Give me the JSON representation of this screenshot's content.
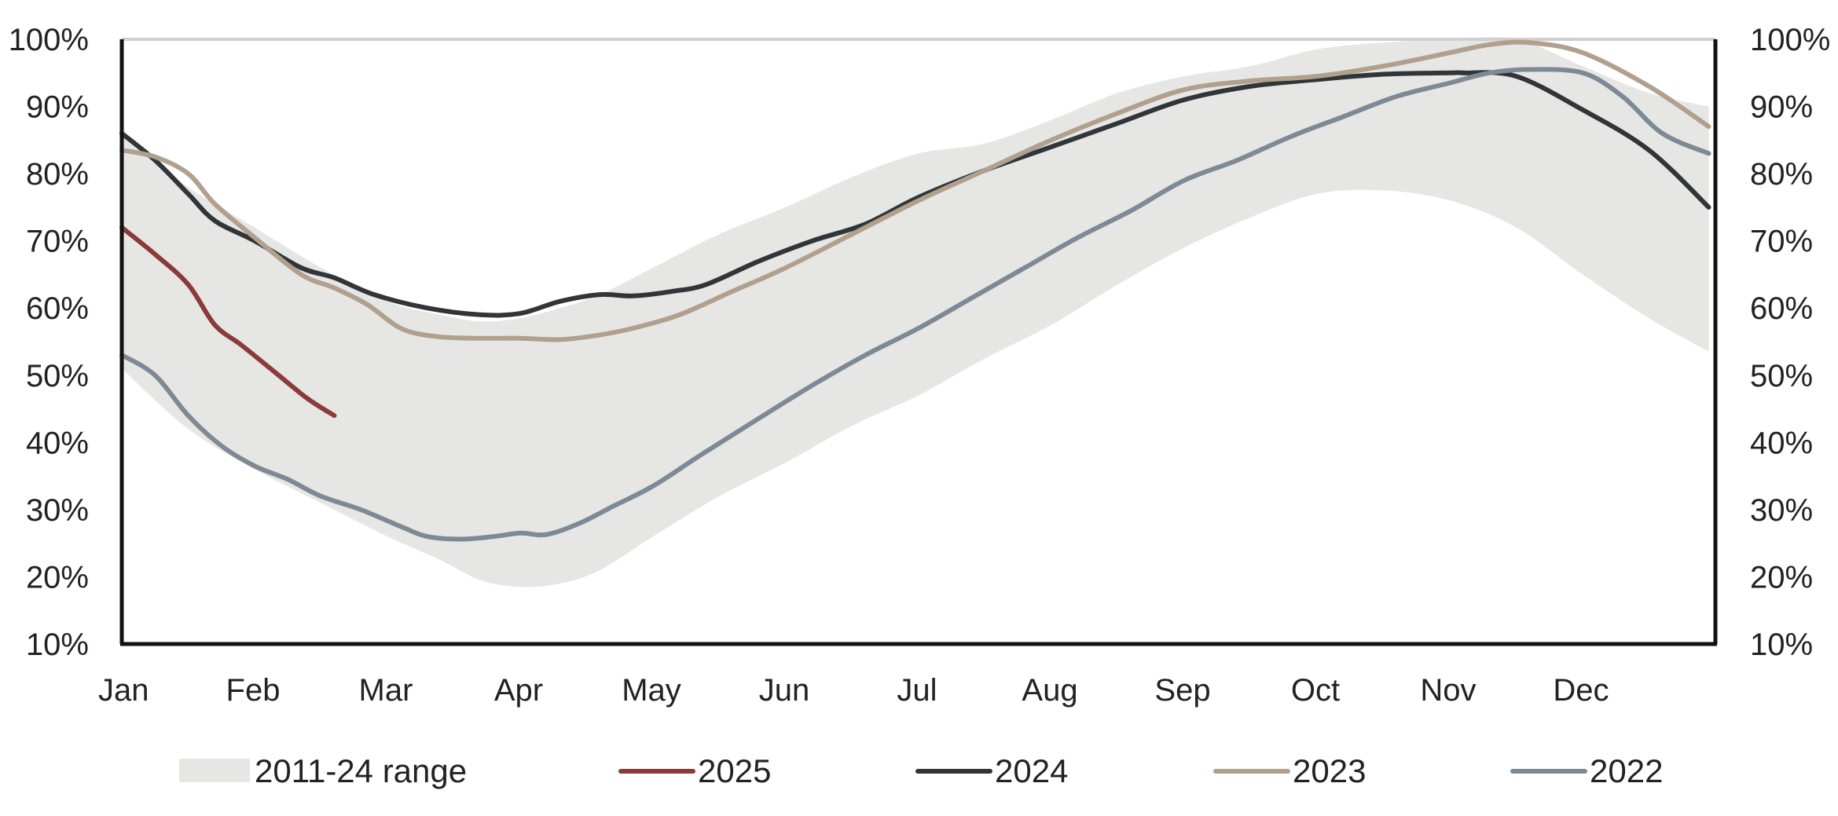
{
  "chart_data": {
    "type": "line",
    "title": "",
    "xlabel": "",
    "ylabel": "",
    "x_ticks": [
      "Jan",
      "Feb",
      "Mar",
      "Apr",
      "May",
      "Jun",
      "Jul",
      "Aug",
      "Sep",
      "Oct",
      "Nov",
      "Dec"
    ],
    "ylim": [
      10,
      100
    ],
    "y_ticks": [
      "10%",
      "20%",
      "30%",
      "40%",
      "50%",
      "60%",
      "70%",
      "80%",
      "90%",
      "100%"
    ],
    "y_tick_values": [
      10,
      20,
      30,
      40,
      50,
      60,
      70,
      80,
      90,
      100
    ],
    "gridline_at": 100,
    "x_unit": "month (Jan = 0, Dec end = 12)",
    "range": {
      "name": "2011-24 range",
      "color": "#e6e6e5",
      "x": [
        0,
        0.5,
        1,
        1.5,
        2,
        2.4,
        2.7,
        3,
        3.3,
        3.6,
        4,
        4.5,
        5,
        5.5,
        6,
        6.5,
        7,
        7.5,
        8,
        8.5,
        9,
        9.5,
        10,
        10.5,
        11,
        11.5,
        11.95
      ],
      "upper": [
        86,
        78,
        72,
        66,
        61,
        59,
        58,
        58.5,
        60,
        62,
        66,
        71,
        75,
        79.5,
        83,
        84.5,
        88,
        92,
        94.5,
        96,
        98.5,
        99.5,
        100,
        100,
        96,
        92,
        90
      ],
      "lower": [
        51,
        42,
        36,
        31,
        26,
        22.5,
        19.5,
        18.5,
        19,
        21,
        26,
        32,
        37,
        42.5,
        47,
        52.5,
        57.5,
        63.5,
        69,
        73.5,
        77,
        77.5,
        76,
        72,
        65,
        58.5,
        53.5
      ]
    },
    "series": [
      {
        "name": "2025",
        "color": "#8b3a3a",
        "x": [
          0,
          0.25,
          0.5,
          0.7,
          0.9,
          1.15,
          1.4,
          1.6
        ],
        "values": [
          72,
          68,
          63.5,
          57.5,
          54.5,
          50.5,
          46.5,
          44
        ]
      },
      {
        "name": "2024",
        "color": "#2f3538",
        "x": [
          0,
          0.25,
          0.5,
          0.7,
          1,
          1.35,
          1.6,
          1.9,
          2.3,
          2.7,
          3,
          3.3,
          3.6,
          3.85,
          4.15,
          4.4,
          4.8,
          5.2,
          5.6,
          6,
          6.5,
          7,
          7.5,
          8,
          8.5,
          9,
          9.5,
          10,
          10.1,
          10.5,
          11,
          11.5,
          11.95
        ],
        "values": [
          86,
          82,
          77,
          73,
          70,
          66,
          64.5,
          62,
          60,
          59,
          59.2,
          61,
          62,
          61.8,
          62.5,
          63.5,
          67,
          70,
          72.5,
          76.5,
          80.5,
          84,
          87.5,
          91,
          93,
          94,
          94.8,
          95,
          95,
          94.5,
          89.5,
          83.5,
          75
        ]
      },
      {
        "name": "2023",
        "color": "#b0a08d",
        "x": [
          0,
          0.25,
          0.5,
          0.7,
          1,
          1.35,
          1.6,
          1.85,
          2.1,
          2.35,
          2.65,
          3,
          3.3,
          3.6,
          3.85,
          4.2,
          4.6,
          5,
          5.5,
          6,
          6.5,
          7,
          7.5,
          8,
          8.5,
          9,
          9.5,
          10,
          10.3,
          10.6,
          11,
          11.5,
          11.95
        ],
        "values": [
          83.5,
          82.5,
          80,
          75.5,
          70.5,
          65,
          63,
          60.5,
          57,
          55.8,
          55.5,
          55.5,
          55.3,
          56,
          57,
          59,
          62.5,
          66,
          71,
          76,
          80.5,
          85,
          89,
          92.5,
          93.8,
          94.5,
          96,
          98,
          99.2,
          99.5,
          98,
          93,
          87
        ]
      },
      {
        "name": "2022",
        "color": "#7d8a95",
        "x": [
          0,
          0.25,
          0.5,
          0.75,
          1,
          1.25,
          1.5,
          1.8,
          2.1,
          2.3,
          2.55,
          2.8,
          3,
          3.2,
          3.45,
          3.7,
          4,
          4.35,
          4.75,
          5.2,
          5.6,
          6,
          6.4,
          6.8,
          7.2,
          7.6,
          8,
          8.4,
          8.8,
          9.2,
          9.6,
          10,
          10.3,
          10.6,
          11,
          11.3,
          11.6,
          11.95
        ],
        "values": [
          53,
          50,
          44,
          39.5,
          36.5,
          34.5,
          32,
          30,
          27.5,
          26,
          25.6,
          26,
          26.5,
          26.3,
          28,
          30.5,
          33.5,
          38,
          43,
          48.5,
          53,
          57,
          61.5,
          66,
          70.5,
          74.5,
          79,
          82,
          85.5,
          88.5,
          91.5,
          93.5,
          95,
          95.5,
          95,
          91.5,
          86,
          83
        ]
      }
    ],
    "legend": {
      "placement": "bottom",
      "entries": [
        "2011-24 range",
        "2025",
        "2024",
        "2023",
        "2022"
      ]
    }
  }
}
